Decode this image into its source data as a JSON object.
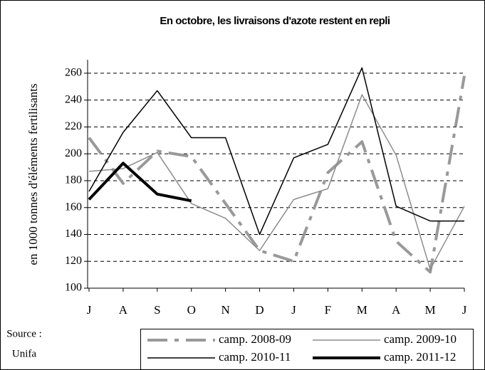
{
  "chart_data": {
    "type": "line",
    "title": "En octobre, les livraisons d'azote restent en repli",
    "y_label": "en 1000 tonnes d'éléments fertilisants",
    "source_label": "Source :",
    "source": "Unifa",
    "categories": [
      "J",
      "A",
      "S",
      "O",
      "N",
      "D",
      "J",
      "F",
      "M",
      "A",
      "M",
      "J"
    ],
    "series": [
      {
        "name": "camp. 2008-09",
        "color": "#999999",
        "values": [
          212,
          178,
          202,
          198,
          163,
          128,
          120,
          186,
          209,
          135,
          112,
          258
        ]
      },
      {
        "name": "camp. 2009-10",
        "color": "#8c8c8c",
        "values": [
          187,
          189,
          201,
          163,
          152,
          128,
          166,
          174,
          244,
          199,
          114,
          161
        ]
      },
      {
        "name": "camp. 2010-11",
        "color": "#000000",
        "values": [
          172,
          216,
          247,
          212,
          212,
          140,
          197,
          207,
          264,
          161,
          150,
          150
        ]
      },
      {
        "name": "camp. 2011-12",
        "color": "#000000",
        "values": [
          166,
          193,
          170,
          165,
          null,
          null,
          null,
          null,
          null,
          null,
          null,
          null
        ]
      }
    ],
    "ylim": [
      100,
      270
    ],
    "yticks": [
      100,
      120,
      140,
      160,
      180,
      200,
      220,
      240,
      260
    ],
    "grid": true
  }
}
